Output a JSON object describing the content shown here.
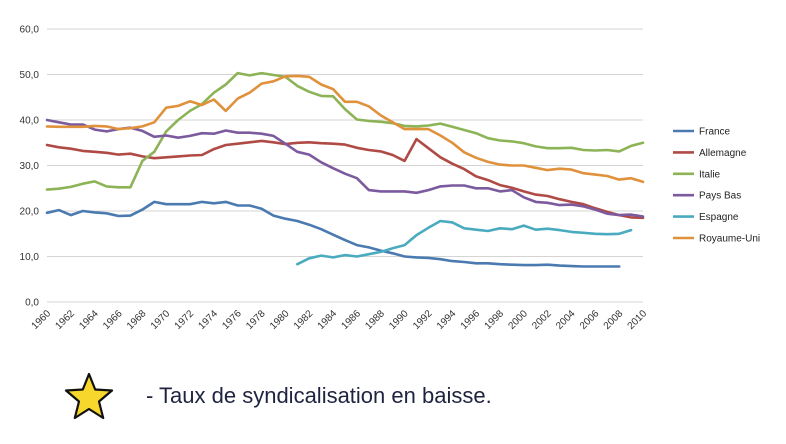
{
  "chart_data": {
    "type": "line",
    "title": "",
    "xlabel": "",
    "ylabel": "",
    "ylim": [
      0,
      60
    ],
    "yticks": [
      "0,0",
      "10,0",
      "20,0",
      "30,0",
      "40,0",
      "50,0",
      "60,0"
    ],
    "xticks": [
      "1960",
      "1962",
      "1964",
      "1966",
      "1968",
      "1970",
      "1972",
      "1974",
      "1976",
      "1978",
      "1980",
      "1982",
      "1984",
      "1986",
      "1988",
      "1990",
      "1992",
      "1994",
      "1996",
      "1998",
      "2000",
      "2002",
      "2004",
      "2006",
      "2008",
      "2010"
    ],
    "grid": "horizontal",
    "legend_position": "right",
    "series": [
      {
        "name": "France",
        "color": "#4a7ab0",
        "x": [
          1960,
          1961,
          1962,
          1963,
          1964,
          1965,
          1966,
          1967,
          1968,
          1969,
          1970,
          1971,
          1972,
          1973,
          1974,
          1975,
          1976,
          1977,
          1978,
          1979,
          1980,
          1981,
          1982,
          1983,
          1984,
          1985,
          1986,
          1987,
          1988,
          1989,
          1990,
          1991,
          1992,
          1993,
          1994,
          1995,
          1996,
          1997,
          1998,
          1999,
          2000,
          2001,
          2002,
          2003,
          2004,
          2005,
          2006,
          2007,
          2008
        ],
        "values": [
          19.6,
          20.2,
          19.1,
          20.0,
          19.7,
          19.5,
          18.9,
          19.0,
          20.3,
          22.0,
          21.5,
          21.5,
          21.5,
          22.0,
          21.7,
          22.0,
          21.2,
          21.2,
          20.5,
          19.0,
          18.3,
          17.8,
          17.0,
          16.0,
          14.8,
          13.6,
          12.5,
          12.0,
          11.3,
          10.7,
          10.0,
          9.8,
          9.7,
          9.4,
          9.0,
          8.8,
          8.5,
          8.5,
          8.3,
          8.2,
          8.1,
          8.1,
          8.2,
          8.0,
          7.9,
          7.8,
          7.8,
          7.8,
          7.8
        ]
      },
      {
        "name": "Allemagne",
        "color": "#b04a45",
        "x": [
          1960,
          1961,
          1962,
          1963,
          1964,
          1965,
          1966,
          1967,
          1968,
          1969,
          1970,
          1971,
          1972,
          1973,
          1974,
          1975,
          1976,
          1977,
          1978,
          1979,
          1980,
          1981,
          1982,
          1983,
          1984,
          1985,
          1986,
          1987,
          1988,
          1989,
          1990,
          1991,
          1992,
          1993,
          1994,
          1995,
          1996,
          1997,
          1998,
          1999,
          2000,
          2001,
          2002,
          2003,
          2004,
          2005,
          2006,
          2007,
          2008,
          2009,
          2010
        ],
        "values": [
          34.5,
          34.0,
          33.7,
          33.2,
          33.0,
          32.8,
          32.4,
          32.6,
          32.0,
          31.6,
          31.8,
          32.0,
          32.2,
          32.3,
          33.6,
          34.5,
          34.8,
          35.1,
          35.4,
          35.1,
          34.7,
          35.0,
          35.1,
          34.9,
          34.8,
          34.6,
          33.9,
          33.4,
          33.1,
          32.3,
          31.0,
          35.8,
          33.8,
          31.8,
          30.4,
          29.2,
          27.6,
          26.8,
          25.7,
          25.1,
          24.3,
          23.6,
          23.3,
          22.6,
          22.0,
          21.5,
          20.6,
          19.8,
          19.1,
          18.6,
          18.5
        ]
      },
      {
        "name": "Italie",
        "color": "#8db357",
        "x": [
          1960,
          1961,
          1962,
          1963,
          1964,
          1965,
          1966,
          1967,
          1968,
          1969,
          1970,
          1971,
          1972,
          1973,
          1974,
          1975,
          1976,
          1977,
          1978,
          1979,
          1980,
          1981,
          1982,
          1983,
          1984,
          1985,
          1986,
          1987,
          1988,
          1989,
          1990,
          1991,
          1992,
          1993,
          1994,
          1995,
          1996,
          1997,
          1998,
          1999,
          2000,
          2001,
          2002,
          2003,
          2004,
          2005,
          2006,
          2007,
          2008,
          2009,
          2010
        ],
        "values": [
          24.7,
          24.9,
          25.3,
          26.0,
          26.5,
          25.4,
          25.2,
          25.2,
          31.0,
          33.0,
          37.5,
          40.0,
          42.0,
          43.5,
          46.0,
          47.8,
          50.3,
          49.8,
          50.3,
          49.9,
          49.5,
          47.5,
          46.2,
          45.3,
          45.2,
          42.4,
          40.1,
          39.8,
          39.6,
          39.3,
          38.7,
          38.6,
          38.8,
          39.2,
          38.5,
          37.8,
          37.1,
          36.0,
          35.5,
          35.3,
          34.9,
          34.2,
          33.8,
          33.8,
          33.9,
          33.4,
          33.3,
          33.4,
          33.1,
          34.3,
          35.0
        ]
      },
      {
        "name": "Pays Bas",
        "color": "#7c5a9e",
        "x": [
          1960,
          1961,
          1962,
          1963,
          1964,
          1965,
          1966,
          1967,
          1968,
          1969,
          1970,
          1971,
          1972,
          1973,
          1974,
          1975,
          1976,
          1977,
          1978,
          1979,
          1980,
          1981,
          1982,
          1983,
          1984,
          1985,
          1986,
          1987,
          1988,
          1989,
          1990,
          1991,
          1992,
          1993,
          1994,
          1995,
          1996,
          1997,
          1998,
          1999,
          2000,
          2001,
          2002,
          2003,
          2004,
          2005,
          2006,
          2007,
          2008,
          2009,
          2010
        ],
        "values": [
          40.0,
          39.5,
          39.0,
          39.0,
          37.9,
          37.5,
          38.0,
          38.3,
          37.6,
          36.3,
          36.6,
          36.1,
          36.5,
          37.1,
          37.0,
          37.7,
          37.2,
          37.2,
          37.0,
          36.5,
          34.8,
          33.0,
          32.4,
          30.7,
          29.4,
          28.2,
          27.2,
          24.6,
          24.3,
          24.3,
          24.3,
          24.0,
          24.6,
          25.4,
          25.6,
          25.6,
          25.0,
          25.0,
          24.3,
          24.6,
          23.0,
          22.0,
          21.8,
          21.3,
          21.4,
          21.0,
          20.3,
          19.4,
          19.1,
          19.2,
          18.8
        ]
      },
      {
        "name": "Espagne",
        "color": "#4aabc0",
        "x": [
          1981,
          1982,
          1983,
          1984,
          1985,
          1986,
          1987,
          1988,
          1989,
          1990,
          1991,
          1992,
          1993,
          1994,
          1995,
          1996,
          1997,
          1998,
          1999,
          2000,
          2001,
          2002,
          2003,
          2004,
          2005,
          2006,
          2007,
          2008,
          2009
        ],
        "values": [
          8.3,
          9.6,
          10.2,
          9.8,
          10.3,
          10.0,
          10.5,
          11.0,
          11.8,
          12.5,
          14.7,
          16.3,
          17.8,
          17.5,
          16.2,
          15.9,
          15.6,
          16.2,
          16.0,
          16.8,
          15.9,
          16.1,
          15.8,
          15.4,
          15.2,
          15.0,
          14.9,
          15.0,
          15.8
        ]
      },
      {
        "name": "Royaume-Uni",
        "color": "#e0913c",
        "x": [
          1960,
          1961,
          1962,
          1963,
          1964,
          1965,
          1966,
          1967,
          1968,
          1969,
          1970,
          1971,
          1972,
          1973,
          1974,
          1975,
          1976,
          1977,
          1978,
          1979,
          1980,
          1981,
          1982,
          1983,
          1984,
          1985,
          1986,
          1987,
          1988,
          1989,
          1990,
          1991,
          1992,
          1993,
          1994,
          1995,
          1996,
          1997,
          1998,
          1999,
          2000,
          2001,
          2002,
          2003,
          2004,
          2005,
          2006,
          2007,
          2008,
          2009,
          2010
        ],
        "values": [
          38.6,
          38.5,
          38.5,
          38.5,
          38.7,
          38.6,
          38.0,
          38.2,
          38.6,
          39.5,
          42.7,
          43.1,
          44.1,
          43.3,
          44.5,
          42.0,
          44.7,
          46.0,
          48.0,
          48.5,
          49.6,
          49.7,
          49.5,
          47.8,
          46.8,
          44.0,
          44.0,
          43.0,
          41.0,
          39.5,
          38.0,
          38.0,
          38.0,
          36.6,
          35.0,
          32.9,
          31.7,
          30.8,
          30.2,
          30.0,
          30.0,
          29.5,
          29.0,
          29.3,
          29.1,
          28.3,
          28.0,
          27.7,
          26.9,
          27.2,
          26.4
        ]
      }
    ]
  },
  "caption": {
    "icon": "star-icon",
    "icon_color": "#f7d72c",
    "text": "- Taux de syndicalisation en baisse."
  }
}
